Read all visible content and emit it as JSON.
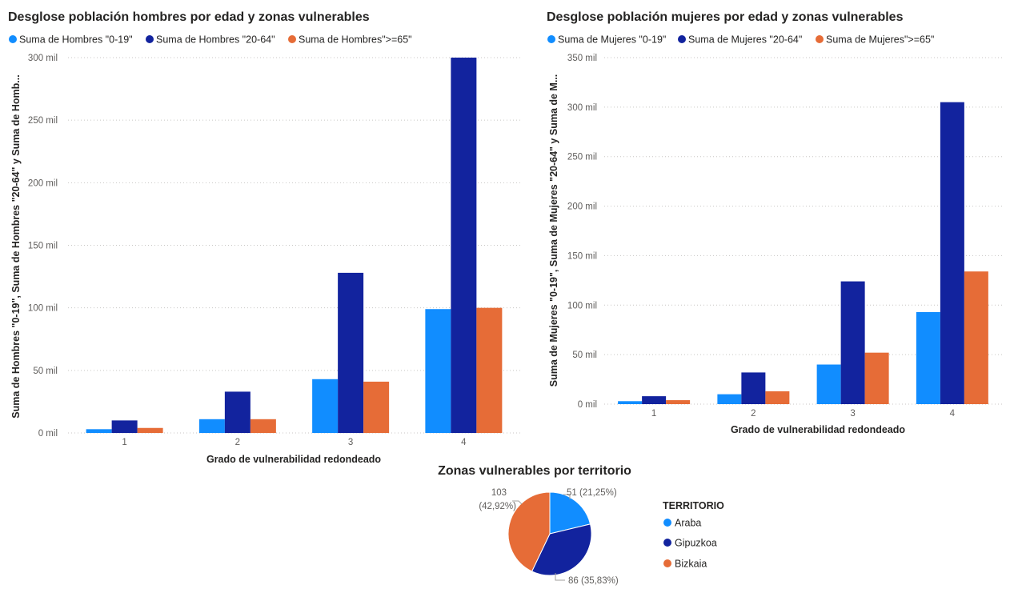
{
  "colors": {
    "light_blue": "#118DFF",
    "dark_blue": "#12239E",
    "orange": "#E66C37"
  },
  "chart_data": [
    {
      "type": "bar",
      "title": "Desglose población hombres por edad y zonas vulnerables",
      "xlabel": "Grado de vulnerabilidad redondeado",
      "ylabel": "Suma de Hombres \"0-19\", Suma de Hombres \"20-64\" y Suma de Homb...",
      "categories": [
        "1",
        "2",
        "3",
        "4"
      ],
      "ylim": [
        0,
        300000
      ],
      "yticks": [
        {
          "value": 0,
          "label": "0 mil"
        },
        {
          "value": 50000,
          "label": "50 mil"
        },
        {
          "value": 100000,
          "label": "100 mil"
        },
        {
          "value": 150000,
          "label": "150 mil"
        },
        {
          "value": 200000,
          "label": "200 mil"
        },
        {
          "value": 250000,
          "label": "250 mil"
        },
        {
          "value": 300000,
          "label": "300 mil"
        }
      ],
      "grid": true,
      "legend_position": "top-left",
      "series": [
        {
          "name": "Suma de Hombres \"0-19\"",
          "color": "#118DFF",
          "values": [
            3000,
            11000,
            43000,
            99000
          ]
        },
        {
          "name": "Suma de Hombres \"20-64\"",
          "color": "#12239E",
          "values": [
            10000,
            33000,
            128000,
            300000
          ]
        },
        {
          "name": "Suma de Hombres\">=65\"",
          "color": "#E66C37",
          "values": [
            4000,
            11000,
            41000,
            100000
          ]
        }
      ]
    },
    {
      "type": "bar",
      "title": "Desglose población mujeres por edad y zonas vulnerables",
      "xlabel": "Grado de vulnerabilidad redondeado",
      "ylabel": "Suma de Mujeres \"0-19\", Suma de Mujeres \"20-64\" y Suma de M...",
      "categories": [
        "1",
        "2",
        "3",
        "4"
      ],
      "ylim": [
        0,
        350000
      ],
      "yticks": [
        {
          "value": 0,
          "label": "0 mil"
        },
        {
          "value": 50000,
          "label": "50 mil"
        },
        {
          "value": 100000,
          "label": "100 mil"
        },
        {
          "value": 150000,
          "label": "150 mil"
        },
        {
          "value": 200000,
          "label": "200 mil"
        },
        {
          "value": 250000,
          "label": "250 mil"
        },
        {
          "value": 300000,
          "label": "300 mil"
        },
        {
          "value": 350000,
          "label": "350 mil"
        }
      ],
      "grid": true,
      "legend_position": "top-left",
      "series": [
        {
          "name": "Suma de Mujeres \"0-19\"",
          "color": "#118DFF",
          "values": [
            3000,
            10000,
            40000,
            93000
          ]
        },
        {
          "name": "Suma de Mujeres \"20-64\"",
          "color": "#12239E",
          "values": [
            8000,
            32000,
            124000,
            305000
          ]
        },
        {
          "name": "Suma de Mujeres\">=65\"",
          "color": "#E66C37",
          "values": [
            4000,
            13000,
            52000,
            134000
          ]
        }
      ]
    },
    {
      "type": "pie",
      "title": "Zonas vulnerables por territorio",
      "legend_title": "TERRITORIO",
      "legend_position": "right",
      "slices": [
        {
          "name": "Araba",
          "value": 51,
          "label": "51 (21,25%)",
          "color": "#118DFF"
        },
        {
          "name": "Gipuzkoa",
          "value": 86,
          "label": "86 (35,83%)",
          "color": "#12239E"
        },
        {
          "name": "Bizkaia",
          "value": 103,
          "label_line1": "103",
          "label_line2": "(42,92%)",
          "color": "#E66C37"
        }
      ]
    }
  ]
}
